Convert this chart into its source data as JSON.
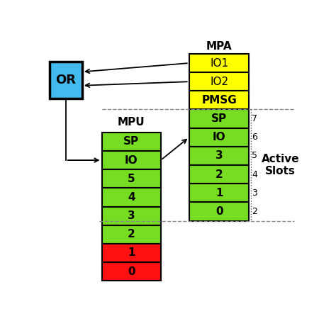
{
  "title_mpa": "MPA",
  "title_mpu": "MPU",
  "or_label": "OR",
  "active_slots_label": "Active\nSlots",
  "mpu_rows": [
    "SP",
    "IO",
    "5",
    "4",
    "3",
    "2",
    "1",
    "0"
  ],
  "mpu_colors": [
    "#77dd22",
    "#77dd22",
    "#77dd22",
    "#77dd22",
    "#77dd22",
    "#77dd22",
    "#ff1111",
    "#ff1111"
  ],
  "mpa_top_rows": [
    "IO1",
    "IO2",
    "PMSG"
  ],
  "mpa_top_color": "#ffff00",
  "mpa_bottom_rows": [
    "SP",
    "IO",
    "3",
    "2",
    "1",
    "0"
  ],
  "mpa_bottom_color": "#77dd22",
  "slot_numbers": [
    "7",
    "6",
    "5",
    "4",
    "3",
    "2"
  ],
  "bg_color": "#ffffff",
  "box_edge_color": "#000000",
  "or_box_color": "#44bbee",
  "green": "#77dd22",
  "yellow": "#ffff00",
  "red": "#ff1111"
}
